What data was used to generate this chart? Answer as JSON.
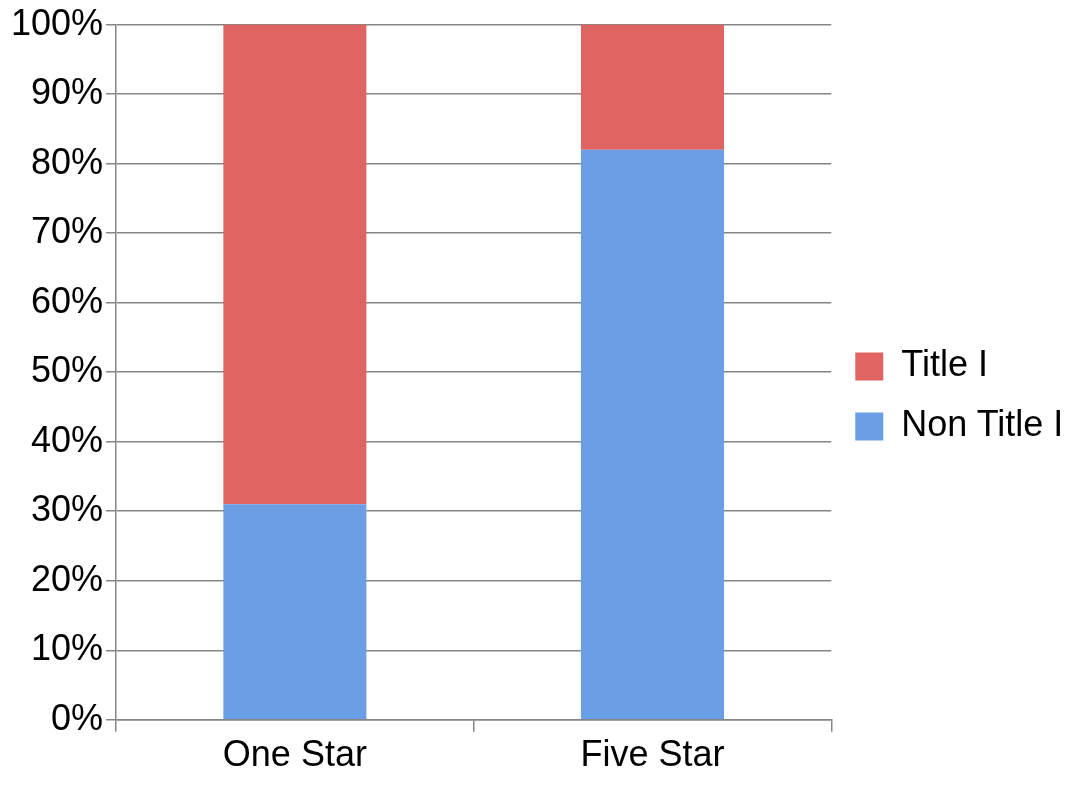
{
  "chart_data": {
    "type": "bar",
    "stacked": true,
    "categories": [
      "One Star",
      "Five Star"
    ],
    "series": [
      {
        "name": "Non Title I",
        "color": "#6a9fe6",
        "values": [
          31,
          82
        ]
      },
      {
        "name": "Title I",
        "color": "#e06461",
        "values": [
          69,
          18
        ]
      }
    ],
    "ylim": [
      0,
      100
    ],
    "yticks": [
      {
        "value": 0,
        "label": "0%"
      },
      {
        "value": 10,
        "label": "10%"
      },
      {
        "value": 20,
        "label": "20%"
      },
      {
        "value": 30,
        "label": "30%"
      },
      {
        "value": 40,
        "label": "40%"
      },
      {
        "value": 50,
        "label": "50%"
      },
      {
        "value": 60,
        "label": "60%"
      },
      {
        "value": 70,
        "label": "70%"
      },
      {
        "value": 80,
        "label": "80%"
      },
      {
        "value": 90,
        "label": "90%"
      },
      {
        "value": 100,
        "label": "100%"
      }
    ],
    "grid": "y",
    "legend": "right"
  }
}
